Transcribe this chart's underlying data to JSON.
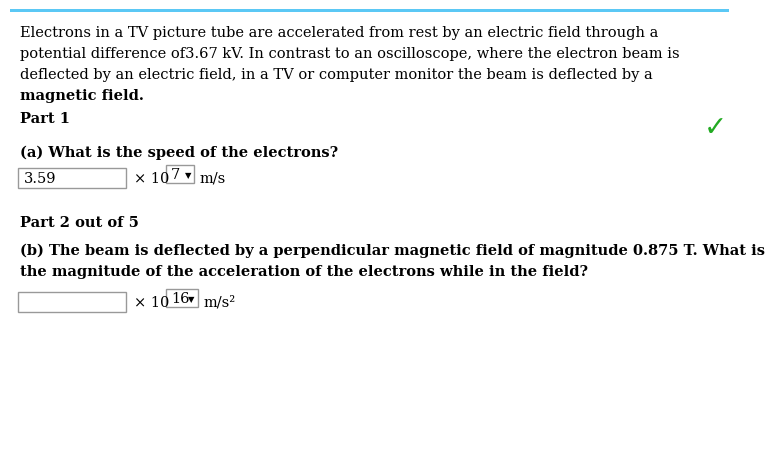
{
  "background_color": "#ffffff",
  "top_border_color": "#5bc8f5",
  "paragraph_text_lines": [
    "Electrons in a TV picture tube are accelerated from rest by an electric field through a",
    "potential difference of3.67 kV. In contrast to an oscilloscope, where the electron beam is",
    "deflected by an electric field, in a TV or computer monitor the beam is deflected by a",
    "magnetic field."
  ],
  "part1_label": "Part 1",
  "checkmark_color": "#22aa22",
  "part_a_question": "(a) What is the speed of the electrons?",
  "part_a_answer": "3.59",
  "part_a_exponent": "7",
  "part_a_unit": "m/s",
  "part2_label": "Part 2 out of 5",
  "part_b_question_line1": "(b) The beam is deflected by a perpendicular magnetic field of magnitude 0.875 T. What is",
  "part_b_question_line2": "the magnitude of the acceleration of the electrons while in the field?",
  "part_b_exponent": "16",
  "part_b_unit": "m/s²",
  "box_border_color": "#999999",
  "text_color": "#000000",
  "font_size_body": 10.5,
  "font_size_bold": 10.5
}
